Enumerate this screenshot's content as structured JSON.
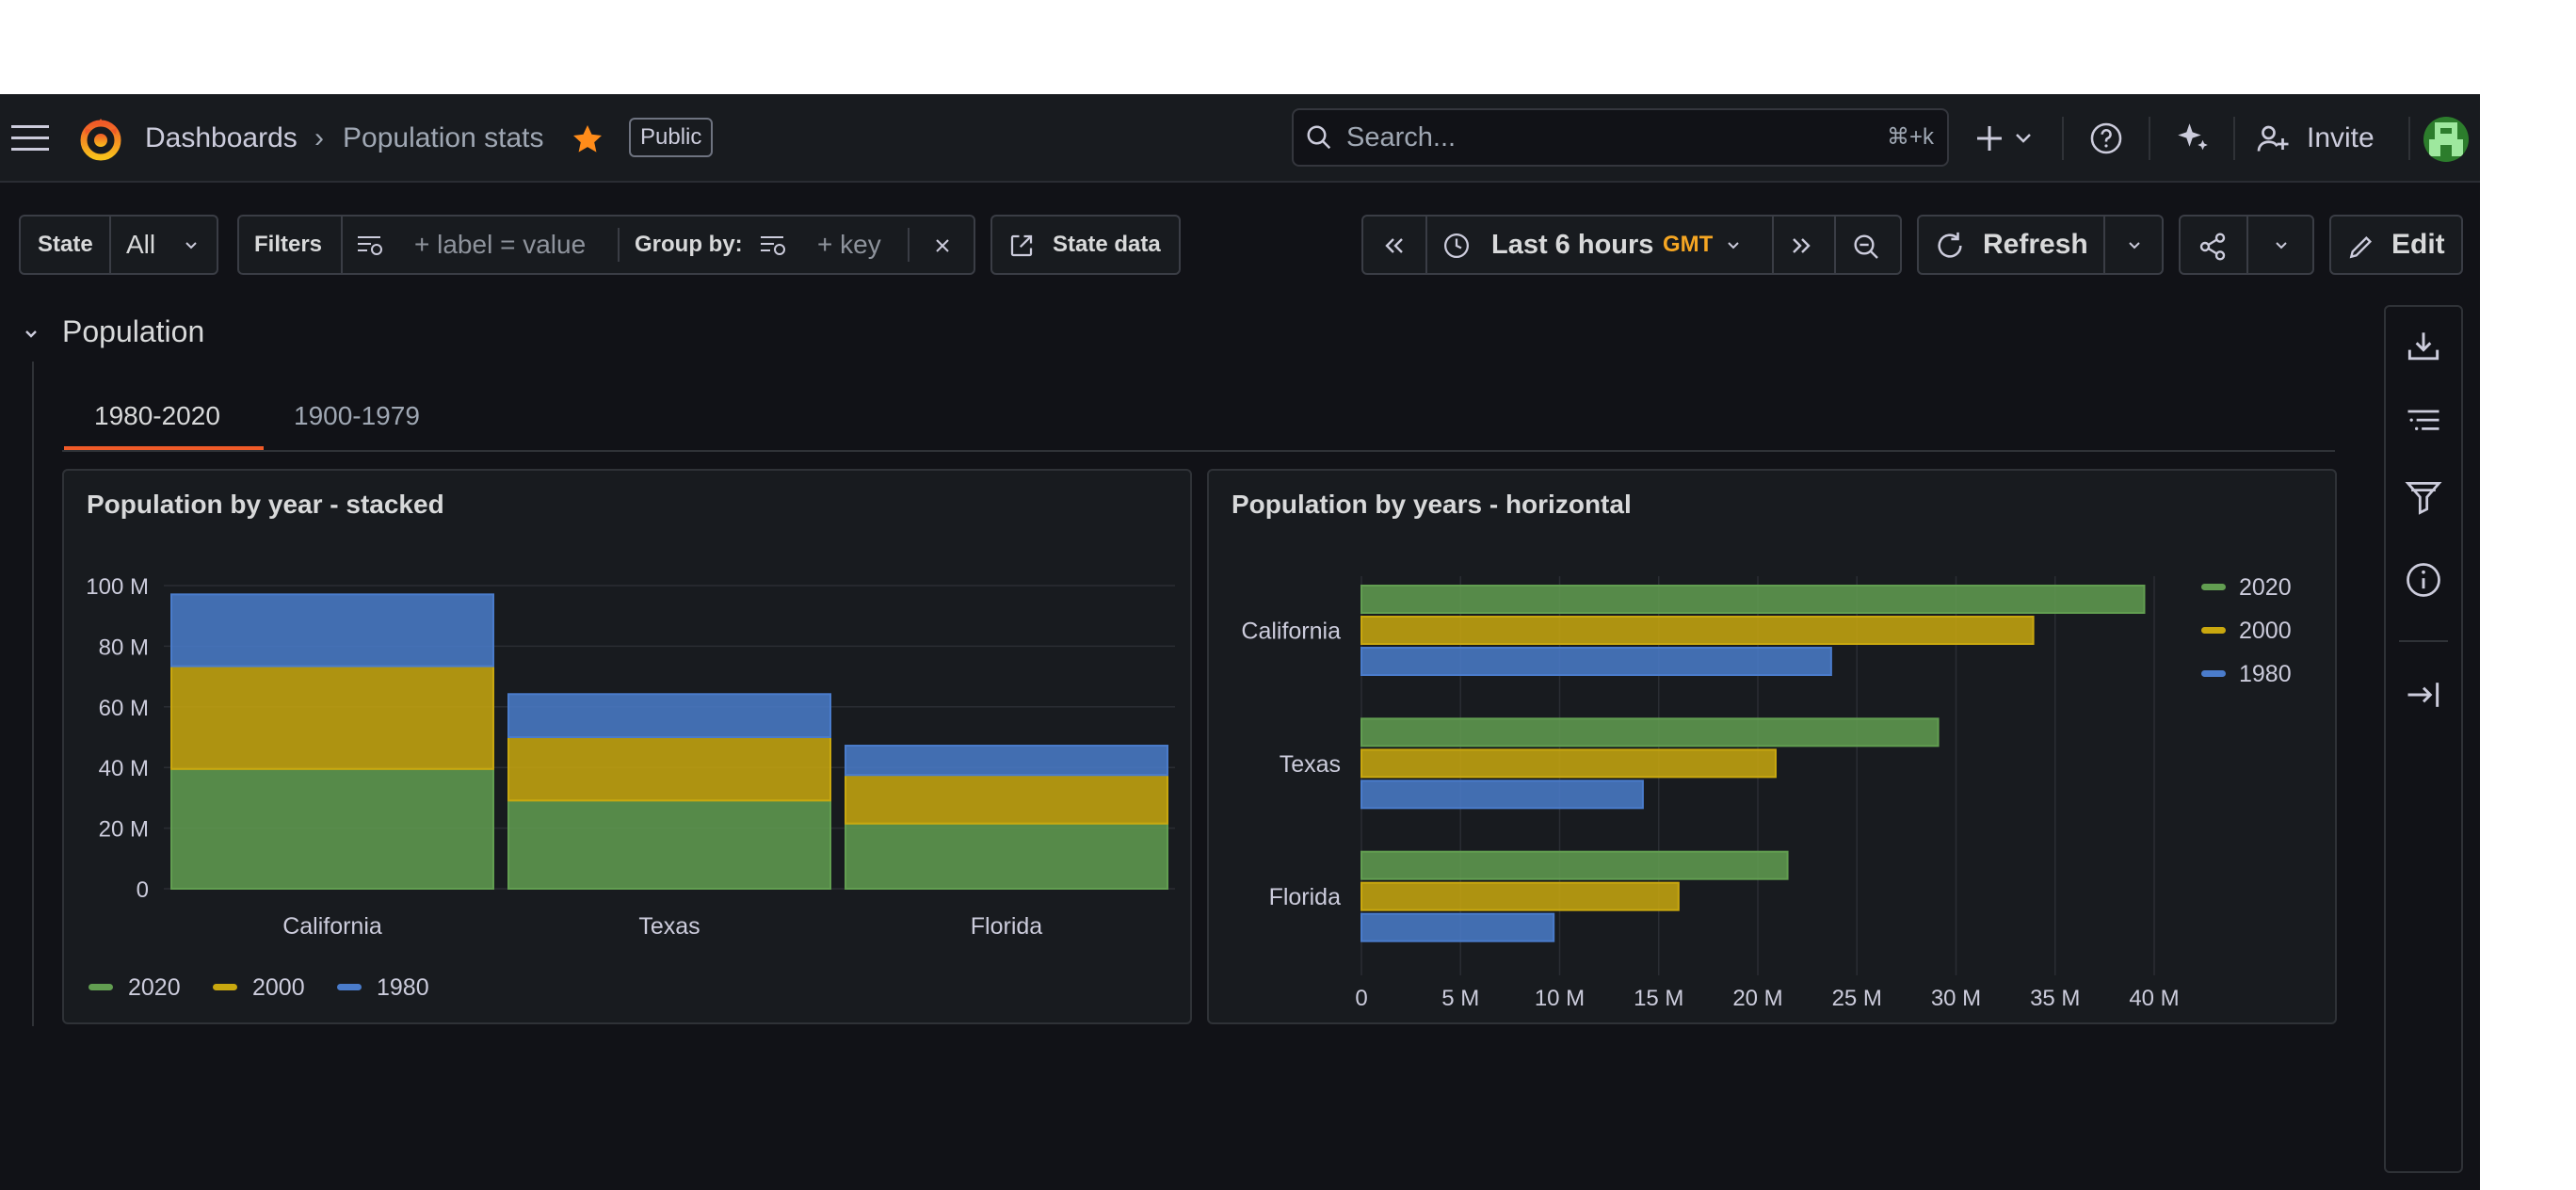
{
  "nav": {
    "breadcrumb_root": "Dashboards",
    "breadcrumb_sep": "›",
    "breadcrumb_current": "Population stats",
    "public_badge": "Public",
    "search_placeholder": "Search...",
    "search_shortcut": "⌘+k",
    "invite_label": "Invite"
  },
  "toolbar": {
    "state_label": "State",
    "state_value": "All",
    "filters_label": "Filters",
    "filters_placeholder": "+ label = value",
    "groupby_label": "Group by:",
    "groupby_placeholder": "+ key",
    "state_data_label": "State data",
    "time_range": "Last 6 hours",
    "timezone": "GMT",
    "refresh_label": "Refresh",
    "edit_label": "Edit"
  },
  "section": {
    "title": "Population",
    "tabs": [
      {
        "label": "1980-2020",
        "active": true
      },
      {
        "label": "1900-1979",
        "active": false
      }
    ]
  },
  "colors": {
    "2020": "#629e51",
    "2000": "#c9a80f",
    "1980": "#4a7ccb",
    "accent": "#f05a28",
    "star": "#ff8c1a",
    "timezone": "#f5a623"
  },
  "panels": [
    {
      "title": "Population by year - stacked"
    },
    {
      "title": "Population by years - horizontal"
    }
  ],
  "chart_data": [
    {
      "type": "bar",
      "stacked": true,
      "title": "Population by year - stacked",
      "categories": [
        "California",
        "Texas",
        "Florida"
      ],
      "series": [
        {
          "name": "2020",
          "values": [
            39.5,
            29.1,
            21.5
          ]
        },
        {
          "name": "2000",
          "values": [
            33.9,
            20.9,
            16.0
          ]
        },
        {
          "name": "1980",
          "values": [
            23.7,
            14.2,
            9.7
          ]
        }
      ],
      "ylim": [
        0,
        100
      ],
      "yticks": [
        "0",
        "20 M",
        "40 M",
        "60 M",
        "80 M",
        "100 M"
      ],
      "legend": "bottom-left",
      "grid": true
    },
    {
      "type": "bar",
      "orientation": "horizontal",
      "title": "Population by years - horizontal",
      "categories": [
        "California",
        "Texas",
        "Florida"
      ],
      "series": [
        {
          "name": "2020",
          "values": [
            39.5,
            29.1,
            21.5
          ]
        },
        {
          "name": "2000",
          "values": [
            33.9,
            20.9,
            16.0
          ]
        },
        {
          "name": "1980",
          "values": [
            23.7,
            14.2,
            9.7
          ]
        }
      ],
      "xlim": [
        0,
        40
      ],
      "xticks": [
        "0",
        "5 M",
        "10 M",
        "15 M",
        "20 M",
        "25 M",
        "30 M",
        "35 M",
        "40 M"
      ],
      "legend": "right",
      "grid": true
    }
  ]
}
